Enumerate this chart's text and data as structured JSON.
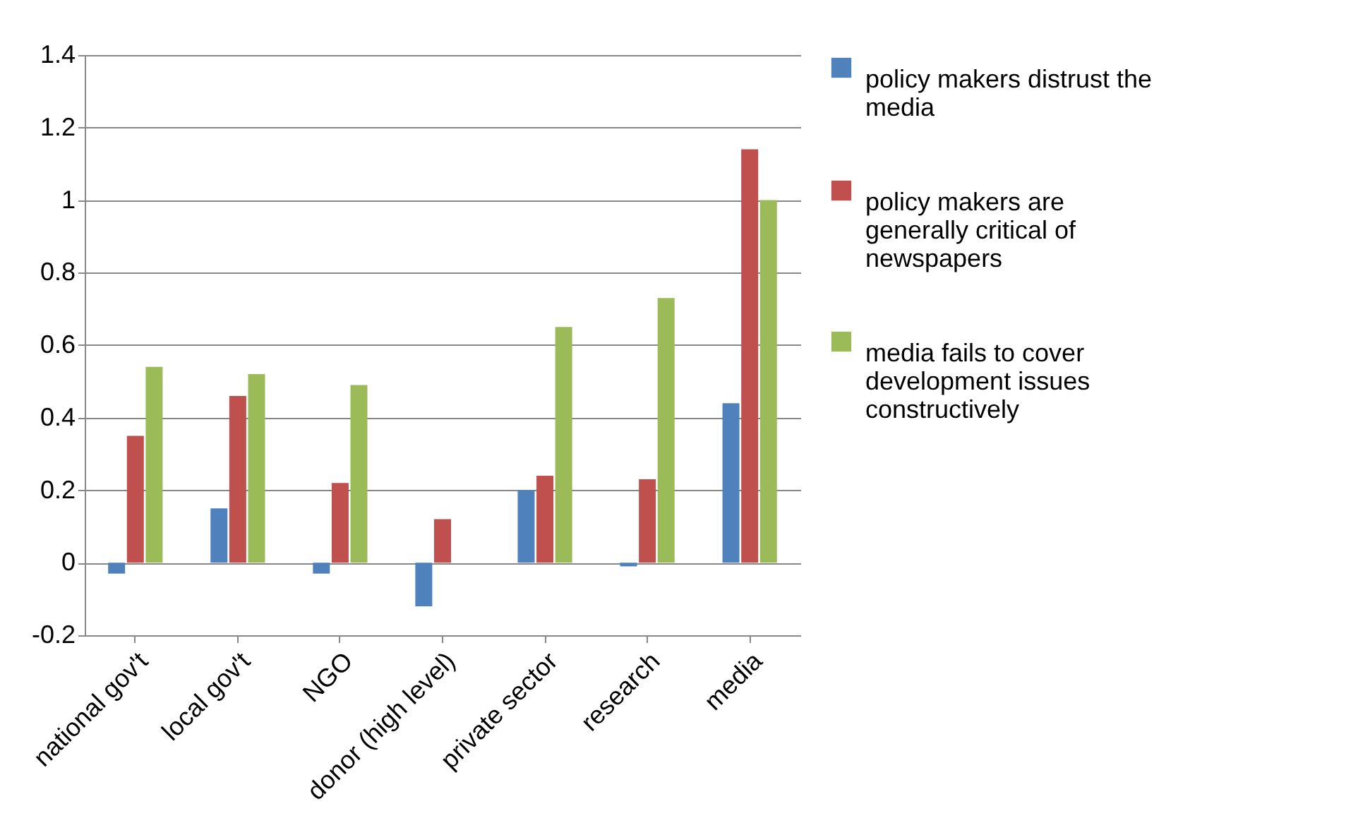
{
  "chart_data": {
    "type": "bar",
    "categories": [
      "national gov't",
      "local gov't",
      "NGO",
      "donor (high level)",
      "private sector",
      "research",
      "media"
    ],
    "series": [
      {
        "name": "policy makers distrust the media",
        "color": "#4f81bd",
        "values": [
          -0.03,
          0.15,
          -0.03,
          -0.12,
          0.2,
          -0.01,
          0.44
        ]
      },
      {
        "name": "policy makers are generally critical of newspapers",
        "color": "#c0504d",
        "values": [
          0.35,
          0.46,
          0.22,
          0.12,
          0.24,
          0.23,
          1.14
        ]
      },
      {
        "name": "media fails to cover development issues constructively",
        "color": "#9bbb59",
        "values": [
          0.54,
          0.52,
          0.49,
          0,
          0.65,
          0.73,
          1.0
        ]
      }
    ],
    "ylim": [
      -0.2,
      1.4
    ],
    "yticks": [
      -0.2,
      0,
      0.2,
      0.4,
      0.6,
      0.8,
      1,
      1.2,
      1.4
    ],
    "grid": "y",
    "legend": "right"
  }
}
